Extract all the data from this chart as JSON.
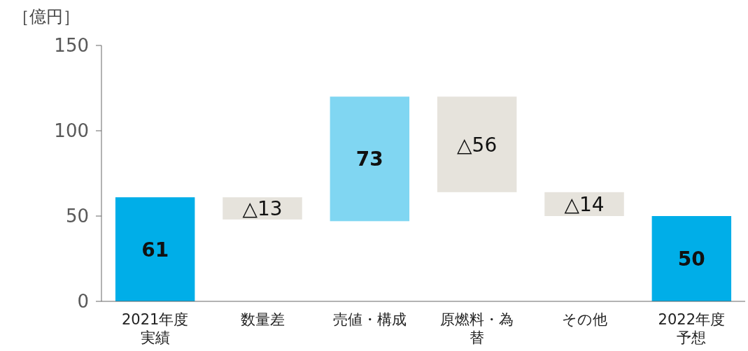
{
  "chart_data": {
    "type": "bar",
    "ylabel": "［億円］",
    "categories": [
      "2021年度実績",
      "数量差",
      "売値・構成",
      "原燃料・為替",
      "その他",
      "2022年度予想"
    ],
    "values": [
      61,
      -13,
      73,
      -56,
      -14,
      50
    ],
    "base": [
      0,
      61,
      47,
      120,
      64,
      0
    ],
    "colors": [
      "#00aee8",
      "#e6e3dc",
      "#80d6f2",
      "#e6e3dc",
      "#e6e3dc",
      "#00aee8"
    ],
    "value_labels": [
      "61",
      "△13",
      "73",
      "△56",
      "△14",
      "50"
    ],
    "ylim": [
      0,
      150
    ],
    "yticks": [
      0,
      50,
      100,
      150
    ],
    "grid": false
  }
}
